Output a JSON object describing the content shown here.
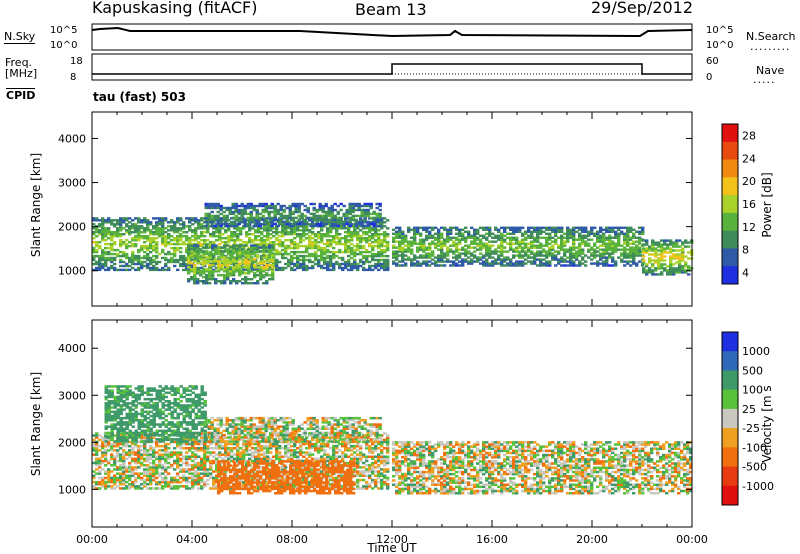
{
  "header": {
    "station": "Kapuskasing (fitACF)",
    "beam": "Beam 13",
    "date": "29/Sep/2012"
  },
  "aux": {
    "nsky_label": "N.Sky",
    "nsearch_label": "N.Search",
    "freq_label": "Freq.",
    "freq_unit": "[MHz]",
    "nave_label": "Nave",
    "cpid_label": "CPID",
    "cpid_value": "tau (fast) 503",
    "noise_left_ticks": [
      "10^5",
      "10^0"
    ],
    "noise_right_ticks": [
      "10^5",
      "10^0"
    ],
    "freq_left_ticks": [
      "18",
      "8"
    ],
    "freq_right_ticks": [
      "60",
      "0"
    ]
  },
  "colors": {
    "power": [
      "#1f2fe0",
      "#2f5aa8",
      "#3f8c5a",
      "#58b23c",
      "#a8d22a",
      "#f2c21a",
      "#f08a12",
      "#e84a10",
      "#e01010"
    ],
    "velocity": [
      "#1f2fe0",
      "#2f6ab8",
      "#3f9a6a",
      "#58c23c",
      "#c8c8c0",
      "#f0a020",
      "#f07010",
      "#e83a10",
      "#e01010"
    ]
  },
  "chart_data": [
    {
      "type": "heatmap",
      "name": "power",
      "ylabel": "Slant Range [km]",
      "colorbar_label": "Power [dB]",
      "colorbar_ticks": [
        "28",
        "24",
        "20",
        "16",
        "12",
        "8",
        "4"
      ],
      "x_ticks": [
        "00:00",
        "04:00",
        "08:00",
        "12:00",
        "16:00",
        "20:00",
        "00:00"
      ],
      "y_ticks": [
        1000,
        2000,
        3000,
        4000
      ],
      "ylim": [
        200,
        4600
      ],
      "xlim_hours": [
        0,
        24
      ],
      "echo_bands": [
        {
          "t0": 0,
          "t1": 11.8,
          "r_low": 1000,
          "r_high": 2200,
          "power": 16
        },
        {
          "t0": 4.5,
          "t1": 11.5,
          "r_low": 2000,
          "r_high": 2500,
          "power": 10
        },
        {
          "t0": 3.8,
          "t1": 7.2,
          "r_low": 700,
          "r_high": 1600,
          "power": 18
        },
        {
          "t0": 12,
          "t1": 22,
          "r_low": 1100,
          "r_high": 2000,
          "power": 14
        },
        {
          "t0": 22,
          "t1": 24,
          "r_low": 900,
          "r_high": 1700,
          "power": 20
        }
      ]
    },
    {
      "type": "heatmap",
      "name": "velocity",
      "ylabel": "Slant Range [km]",
      "colorbar_label": "Velocity [m s",
      "colorbar_ticks": [
        "1000",
        "500",
        "100",
        "25",
        "-25",
        "-100",
        "-500",
        "-1000"
      ],
      "x_ticks": [
        "00:00",
        "04:00",
        "08:00",
        "12:00",
        "16:00",
        "20:00",
        "00:00"
      ],
      "xlabel": "Time UT",
      "y_ticks": [
        1000,
        2000,
        3000,
        4000
      ],
      "ylim": [
        200,
        4600
      ],
      "xlim_hours": [
        0,
        24
      ],
      "echo_bands": [
        {
          "t0": 0,
          "t1": 11.8,
          "r_low": 1000,
          "r_high": 2200,
          "velocity": 0
        },
        {
          "t0": 4.5,
          "t1": 11.5,
          "r_low": 2000,
          "r_high": 2500,
          "velocity": 0
        },
        {
          "t0": 5,
          "t1": 10.5,
          "r_low": 900,
          "r_high": 1600,
          "velocity": -300
        },
        {
          "t0": 0.5,
          "t1": 4.5,
          "r_low": 2000,
          "r_high": 3200,
          "velocity": 200
        },
        {
          "t0": 12,
          "t1": 24,
          "r_low": 900,
          "r_high": 2000,
          "velocity": 0
        }
      ]
    }
  ]
}
